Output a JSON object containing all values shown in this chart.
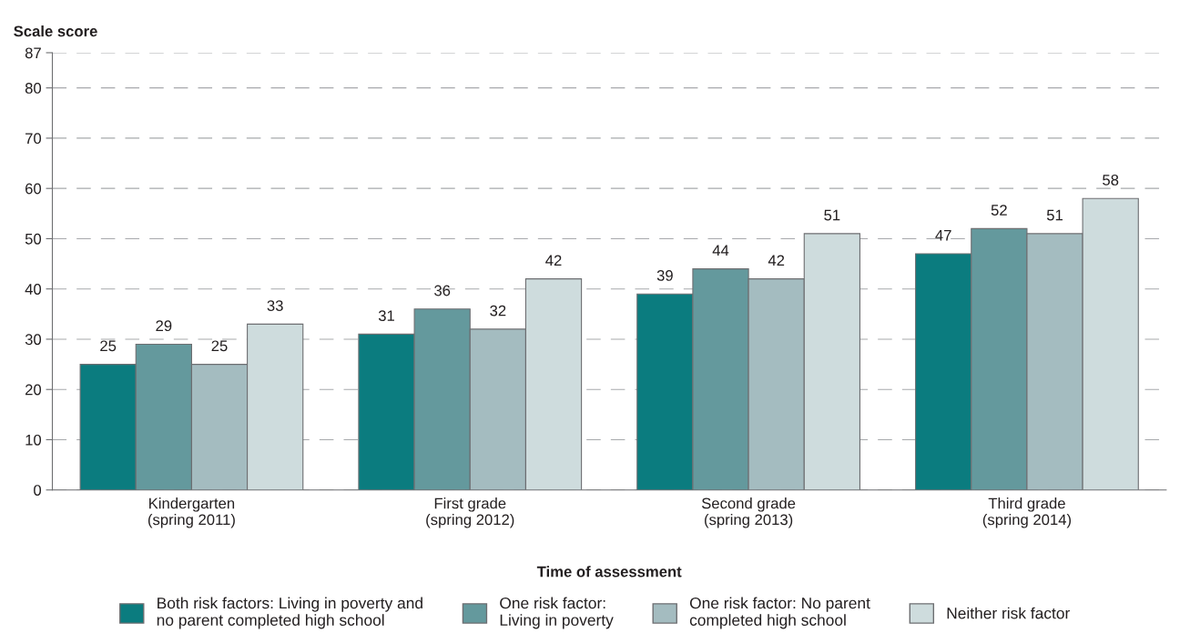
{
  "chart_data": {
    "type": "bar",
    "ylabel": "Scale score",
    "xlabel": "Time of assessment",
    "categories": [
      "Kindergarten\n(spring 2011)",
      "First grade\n(spring 2012)",
      "Second grade\n(spring 2013)",
      "Third grade\n(spring 2014)"
    ],
    "series": [
      {
        "name": "Both risk factors: Living in poverty and\nno parent completed high school",
        "color": "#0b7c7f",
        "values": [
          25,
          31,
          39,
          47
        ]
      },
      {
        "name": "One risk factor:\nLiving in poverty",
        "color": "#64999d",
        "values": [
          29,
          36,
          44,
          52
        ]
      },
      {
        "name": "One risk factor: No parent\ncompleted high school",
        "color": "#a4bcc0",
        "values": [
          25,
          32,
          42,
          51
        ]
      },
      {
        "name": "Neither risk factor",
        "color": "#cedcdd",
        "values": [
          33,
          42,
          51,
          58
        ]
      }
    ],
    "ylim": [
      0,
      87
    ],
    "yticks": [
      0,
      10,
      20,
      30,
      40,
      50,
      60,
      70,
      80,
      87
    ],
    "grid": "y",
    "legend": "bottom",
    "data_labels": true
  }
}
